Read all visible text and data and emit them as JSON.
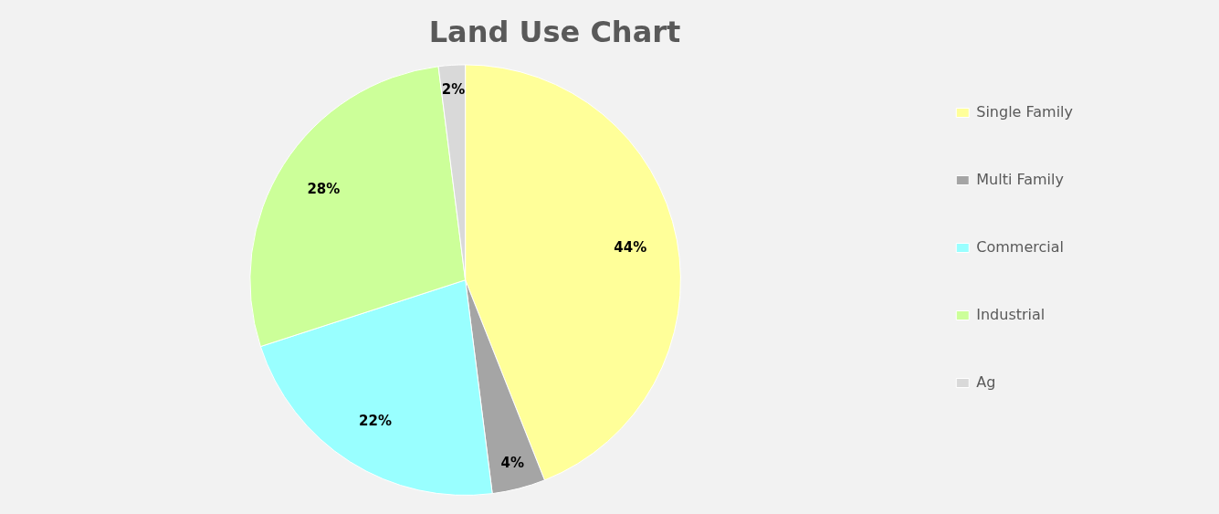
{
  "chart_data": {
    "type": "pie",
    "title": "Land Use Chart",
    "categories": [
      "Single Family",
      "Multi Family",
      "Commercial",
      "Industrial",
      "Ag"
    ],
    "values": [
      44,
      4,
      22,
      28,
      2
    ],
    "colors": [
      "#ffff99",
      "#a5a5a5",
      "#99ffff",
      "#ccff99",
      "#d9d9d9"
    ],
    "value_labels": [
      "44%",
      "4%",
      "22%",
      "28%",
      "2%"
    ],
    "legend": "right"
  }
}
